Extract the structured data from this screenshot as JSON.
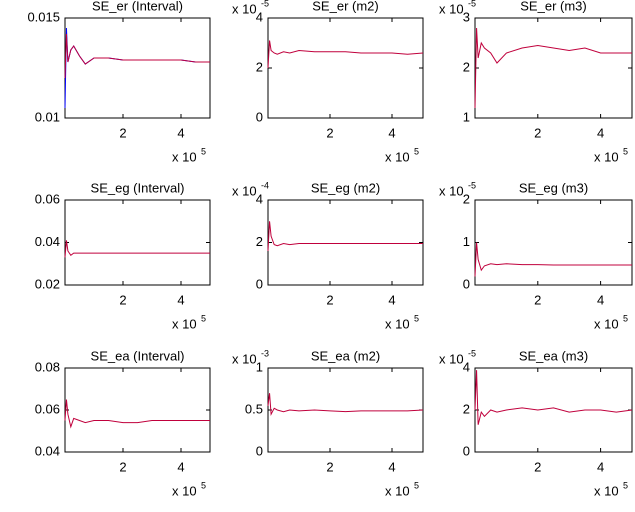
{
  "chart_data": [
    {
      "type": "line",
      "title": "SE_er (Interval)",
      "x": [
        0,
        5000,
        10000,
        20000,
        30000,
        50000,
        70000,
        100000,
        150000,
        200000,
        250000,
        300000,
        350000,
        400000,
        450000,
        500000
      ],
      "series": [
        {
          "color": "#0000ff",
          "values": [
            0.0105,
            0.0145,
            0.0128,
            0.0134,
            0.0136,
            0.0131,
            0.0127,
            0.013,
            0.013,
            0.0129,
            0.0129,
            0.0129,
            0.0129,
            0.0129,
            0.0128,
            0.0128
          ]
        },
        {
          "color": "#c0003c",
          "values": [
            0.012,
            0.0142,
            0.0128,
            0.0134,
            0.0136,
            0.0131,
            0.0127,
            0.013,
            0.013,
            0.0129,
            0.0129,
            0.0129,
            0.0129,
            0.0129,
            0.0128,
            0.0128
          ]
        }
      ],
      "xlim": [
        0,
        500000
      ],
      "xticks": [
        {
          "value": 200000,
          "label": "2"
        },
        {
          "value": 400000,
          "label": "4"
        }
      ],
      "x_scale_base": "x 10",
      "x_scale_exp": "5",
      "ylim": [
        0.01,
        0.015
      ],
      "yticks": [
        0.01,
        0.015
      ]
    },
    {
      "type": "line",
      "title": "SE_er (m2)",
      "x": [
        0,
        5000,
        10000,
        20000,
        30000,
        50000,
        70000,
        100000,
        150000,
        200000,
        250000,
        300000,
        350000,
        400000,
        450000,
        500000
      ],
      "series": [
        {
          "color": "#c0003c",
          "values": [
            2.0,
            3.1,
            2.7,
            2.6,
            2.55,
            2.65,
            2.6,
            2.7,
            2.65,
            2.65,
            2.65,
            2.6,
            2.6,
            2.6,
            2.55,
            2.6
          ]
        }
      ],
      "xlim": [
        0,
        500000
      ],
      "xticks": [
        {
          "value": 200000,
          "label": "2"
        },
        {
          "value": 400000,
          "label": "4"
        }
      ],
      "x_scale_base": "x 10",
      "x_scale_exp": "5",
      "ylim": [
        0,
        4
      ],
      "yticks": [
        0,
        2,
        4
      ],
      "y_scale_base": "x 10",
      "y_scale_exp": "-5"
    },
    {
      "type": "line",
      "title": "SE_er (m3)",
      "x": [
        0,
        5000,
        10000,
        20000,
        30000,
        50000,
        70000,
        100000,
        150000,
        200000,
        250000,
        300000,
        350000,
        400000,
        450000,
        500000
      ],
      "series": [
        {
          "color": "#c0003c",
          "values": [
            1.2,
            2.8,
            2.2,
            2.5,
            2.4,
            2.3,
            2.1,
            2.3,
            2.4,
            2.45,
            2.4,
            2.35,
            2.4,
            2.3,
            2.3,
            2.3
          ]
        }
      ],
      "xlim": [
        0,
        500000
      ],
      "xticks": [
        {
          "value": 200000,
          "label": "2"
        },
        {
          "value": 400000,
          "label": "4"
        }
      ],
      "x_scale_base": "x 10",
      "x_scale_exp": "5",
      "ylim": [
        1,
        3
      ],
      "yticks": [
        1,
        2,
        3
      ],
      "y_scale_base": "x 10",
      "y_scale_exp": "-5"
    },
    {
      "type": "line",
      "title": "SE_eg (Interval)",
      "x": [
        0,
        5000,
        10000,
        20000,
        30000,
        50000,
        70000,
        100000,
        150000,
        200000,
        250000,
        300000,
        350000,
        400000,
        450000,
        500000
      ],
      "series": [
        {
          "color": "#c0003c",
          "values": [
            0.033,
            0.041,
            0.036,
            0.034,
            0.035,
            0.035,
            0.035,
            0.035,
            0.035,
            0.035,
            0.035,
            0.035,
            0.035,
            0.035,
            0.035,
            0.035
          ]
        }
      ],
      "xlim": [
        0,
        500000
      ],
      "xticks": [
        {
          "value": 200000,
          "label": "2"
        },
        {
          "value": 400000,
          "label": "4"
        }
      ],
      "x_scale_base": "x 10",
      "x_scale_exp": "5",
      "ylim": [
        0.02,
        0.06
      ],
      "yticks": [
        0.02,
        0.04,
        0.06
      ]
    },
    {
      "type": "line",
      "title": "SE_eg (m2)",
      "x": [
        0,
        5000,
        10000,
        20000,
        30000,
        50000,
        70000,
        100000,
        150000,
        200000,
        250000,
        300000,
        350000,
        400000,
        450000,
        500000
      ],
      "series": [
        {
          "color": "#c0003c",
          "values": [
            1.6,
            3.0,
            2.3,
            1.9,
            1.85,
            1.95,
            1.9,
            1.95,
            1.95,
            1.95,
            1.95,
            1.95,
            1.95,
            1.95,
            1.95,
            1.95
          ]
        }
      ],
      "xlim": [
        0,
        500000
      ],
      "xticks": [
        {
          "value": 200000,
          "label": "2"
        },
        {
          "value": 400000,
          "label": "4"
        }
      ],
      "x_scale_base": "x 10",
      "x_scale_exp": "5",
      "ylim": [
        0,
        4
      ],
      "yticks": [
        0,
        2,
        4
      ],
      "y_scale_base": "x 10",
      "y_scale_exp": "-4"
    },
    {
      "type": "line",
      "title": "SE_eg (m3)",
      "x": [
        0,
        5000,
        10000,
        20000,
        30000,
        50000,
        70000,
        100000,
        150000,
        200000,
        250000,
        300000,
        350000,
        400000,
        450000,
        500000
      ],
      "series": [
        {
          "color": "#c0003c",
          "values": [
            0.2,
            1.0,
            0.6,
            0.35,
            0.45,
            0.5,
            0.48,
            0.5,
            0.48,
            0.48,
            0.47,
            0.47,
            0.47,
            0.47,
            0.47,
            0.47
          ]
        }
      ],
      "xlim": [
        0,
        500000
      ],
      "xticks": [
        {
          "value": 200000,
          "label": "2"
        },
        {
          "value": 400000,
          "label": "4"
        }
      ],
      "x_scale_base": "x 10",
      "x_scale_exp": "5",
      "ylim": [
        0,
        2
      ],
      "yticks": [
        0,
        1,
        2
      ],
      "y_scale_base": "x 10",
      "y_scale_exp": "-5"
    },
    {
      "type": "line",
      "title": "SE_ea (Interval)",
      "x": [
        0,
        5000,
        10000,
        20000,
        30000,
        50000,
        70000,
        100000,
        150000,
        200000,
        250000,
        300000,
        350000,
        400000,
        450000,
        500000
      ],
      "series": [
        {
          "color": "#c0003c",
          "values": [
            0.055,
            0.065,
            0.058,
            0.052,
            0.056,
            0.055,
            0.054,
            0.055,
            0.055,
            0.054,
            0.054,
            0.055,
            0.055,
            0.055,
            0.055,
            0.055
          ]
        }
      ],
      "xlim": [
        0,
        500000
      ],
      "xticks": [
        {
          "value": 200000,
          "label": "2"
        },
        {
          "value": 400000,
          "label": "4"
        }
      ],
      "x_scale_base": "x 10",
      "x_scale_exp": "5",
      "ylim": [
        0.04,
        0.08
      ],
      "yticks": [
        0.04,
        0.06,
        0.08
      ]
    },
    {
      "type": "line",
      "title": "SE_ea (m2)",
      "x": [
        0,
        5000,
        10000,
        20000,
        30000,
        50000,
        70000,
        100000,
        150000,
        200000,
        250000,
        300000,
        350000,
        400000,
        450000,
        500000
      ],
      "series": [
        {
          "color": "#c0003c",
          "values": [
            0.55,
            0.7,
            0.45,
            0.52,
            0.5,
            0.48,
            0.5,
            0.49,
            0.5,
            0.49,
            0.48,
            0.49,
            0.49,
            0.49,
            0.49,
            0.5
          ]
        }
      ],
      "xlim": [
        0,
        500000
      ],
      "xticks": [
        {
          "value": 200000,
          "label": "2"
        },
        {
          "value": 400000,
          "label": "4"
        }
      ],
      "x_scale_base": "x 10",
      "x_scale_exp": "5",
      "ylim": [
        0,
        1
      ],
      "yticks": [
        0,
        0.5,
        1
      ],
      "y_scale_base": "x 10",
      "y_scale_exp": "-3"
    },
    {
      "type": "line",
      "title": "SE_ea (m3)",
      "x": [
        0,
        5000,
        10000,
        20000,
        30000,
        50000,
        70000,
        100000,
        150000,
        200000,
        250000,
        300000,
        350000,
        400000,
        450000,
        500000
      ],
      "series": [
        {
          "color": "#c0003c",
          "values": [
            2.0,
            3.9,
            1.3,
            1.9,
            1.7,
            2.0,
            1.9,
            2.0,
            2.1,
            2.0,
            2.1,
            1.9,
            2.0,
            2.0,
            1.9,
            2.0
          ]
        }
      ],
      "xlim": [
        0,
        500000
      ],
      "xticks": [
        {
          "value": 200000,
          "label": "2"
        },
        {
          "value": 400000,
          "label": "4"
        }
      ],
      "x_scale_base": "x 10",
      "x_scale_exp": "5",
      "ylim": [
        0,
        4
      ],
      "yticks": [
        0,
        2,
        4
      ],
      "y_scale_base": "x 10",
      "y_scale_exp": "-5"
    }
  ]
}
